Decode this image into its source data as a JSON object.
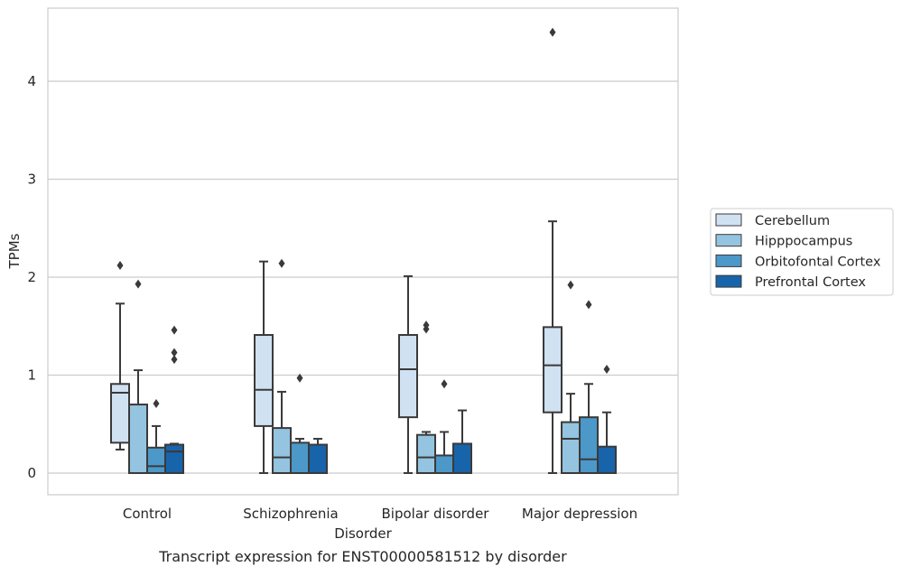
{
  "colors": {
    "Cerebellum": "#d0e1f2",
    "Hipppocampus": "#94c4df",
    "Orbitofontal Cortex": "#4b98c9",
    "Prefrontal Cortex": "#1764ab",
    "edge": "#3a3a3a",
    "grid": "#cccccc",
    "frame": "#cccccc"
  },
  "chart_data": {
    "type": "box",
    "title": "Transcript expression for ENST00000581512 by disorder",
    "xlabel": "Disorder",
    "ylabel": "TPMs",
    "categories": [
      "Control",
      "Schizophrenia",
      "Bipolar disorder",
      "Major depression"
    ],
    "ylim": [
      -0.22,
      4.74
    ],
    "yticks": [
      0,
      1,
      2,
      3,
      4
    ],
    "grid": true,
    "legend_position": "right",
    "series": [
      {
        "name": "Cerebellum",
        "boxes": [
          {
            "whislo": 0.24,
            "q1": 0.31,
            "med": 0.82,
            "q3": 0.91,
            "whishi": 1.73,
            "fliers": [
              2.12
            ]
          },
          {
            "whislo": 0.0,
            "q1": 0.48,
            "med": 0.85,
            "q3": 1.41,
            "whishi": 2.16,
            "fliers": []
          },
          {
            "whislo": 0.0,
            "q1": 0.57,
            "med": 1.06,
            "q3": 1.41,
            "whishi": 2.01,
            "fliers": []
          },
          {
            "whislo": 0.0,
            "q1": 0.62,
            "med": 1.1,
            "q3": 1.49,
            "whishi": 2.57,
            "fliers": [
              4.5
            ]
          }
        ]
      },
      {
        "name": "Hipppocampus",
        "boxes": [
          {
            "whislo": 0.0,
            "q1": 0.0,
            "med": 0.0,
            "q3": 0.7,
            "whishi": 1.05,
            "fliers": [
              1.93
            ]
          },
          {
            "whislo": 0.0,
            "q1": 0.0,
            "med": 0.16,
            "q3": 0.46,
            "whishi": 0.83,
            "fliers": [
              2.14
            ]
          },
          {
            "whislo": 0.0,
            "q1": 0.0,
            "med": 0.16,
            "q3": 0.39,
            "whishi": 0.42,
            "fliers": [
              1.47,
              1.51
            ]
          },
          {
            "whislo": 0.0,
            "q1": 0.0,
            "med": 0.35,
            "q3": 0.52,
            "whishi": 0.81,
            "fliers": [
              1.92
            ]
          }
        ]
      },
      {
        "name": "Orbitofontal Cortex",
        "boxes": [
          {
            "whislo": 0.0,
            "q1": 0.0,
            "med": 0.07,
            "q3": 0.26,
            "whishi": 0.48,
            "fliers": [
              0.71
            ]
          },
          {
            "whislo": 0.0,
            "q1": 0.0,
            "med": 0.0,
            "q3": 0.31,
            "whishi": 0.35,
            "fliers": [
              0.97
            ]
          },
          {
            "whislo": 0.0,
            "q1": 0.0,
            "med": 0.0,
            "q3": 0.18,
            "whishi": 0.42,
            "fliers": [
              0.91
            ]
          },
          {
            "whislo": 0.0,
            "q1": 0.0,
            "med": 0.14,
            "q3": 0.57,
            "whishi": 0.91,
            "fliers": [
              1.72
            ]
          }
        ]
      },
      {
        "name": "Prefrontal Cortex",
        "boxes": [
          {
            "whislo": 0.0,
            "q1": 0.0,
            "med": 0.22,
            "q3": 0.29,
            "whishi": 0.3,
            "fliers": [
              1.16,
              1.23,
              1.46
            ]
          },
          {
            "whislo": 0.0,
            "q1": 0.0,
            "med": 0.0,
            "q3": 0.29,
            "whishi": 0.35,
            "fliers": []
          },
          {
            "whislo": 0.0,
            "q1": 0.0,
            "med": 0.0,
            "q3": 0.3,
            "whishi": 0.64,
            "fliers": []
          },
          {
            "whislo": 0.0,
            "q1": 0.0,
            "med": 0.0,
            "q3": 0.27,
            "whishi": 0.62,
            "fliers": [
              1.06
            ]
          }
        ]
      }
    ]
  }
}
